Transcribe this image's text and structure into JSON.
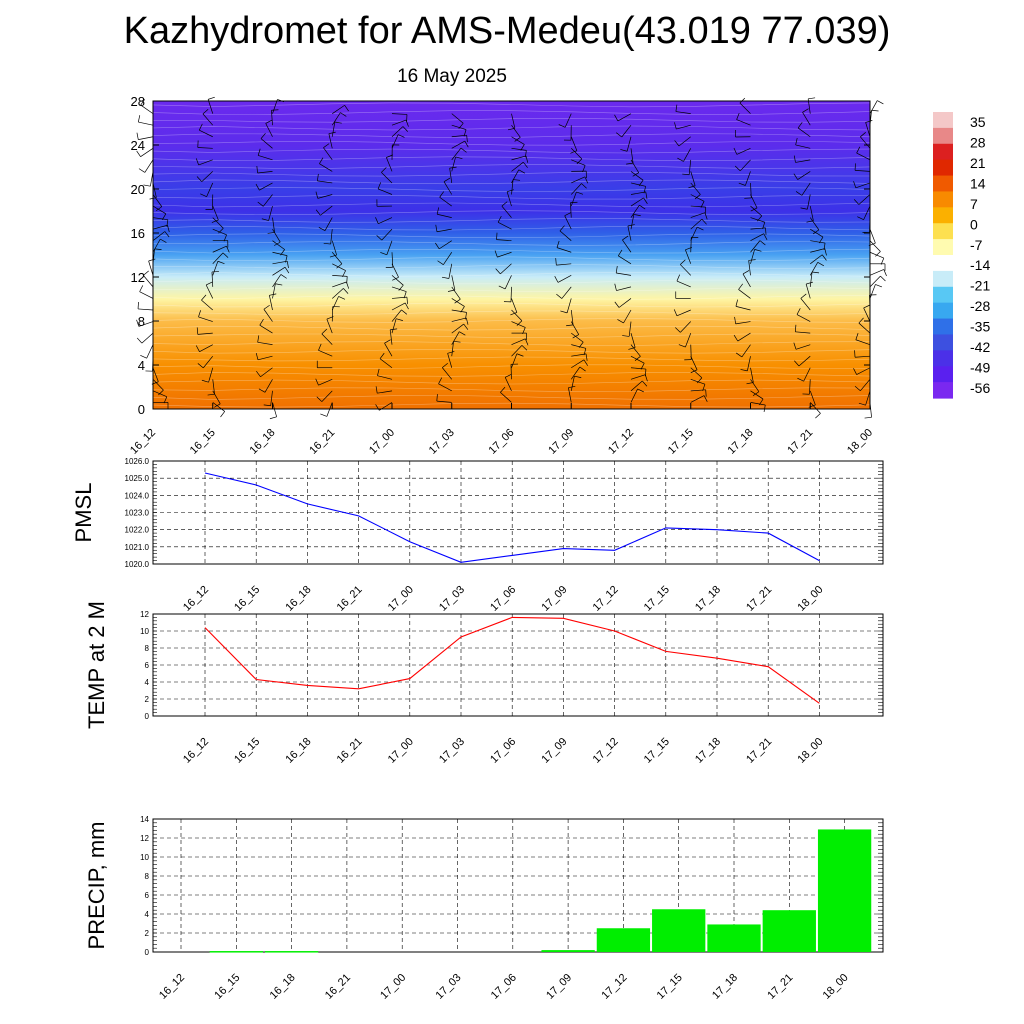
{
  "title": "Kazhydromet for AMS-Medeu(43.019 77.039)",
  "subtitle": "16 May 2025",
  "time_labels": [
    "16_12",
    "16_15",
    "16_18",
    "16_21",
    "17_00",
    "17_03",
    "17_06",
    "17_09",
    "17_12",
    "17_15",
    "17_18",
    "17_21",
    "18_00"
  ],
  "colors": {
    "pmsl_line": "#0000ff",
    "temp_line": "#ff0000",
    "precip_bar": "#00ee00",
    "grid": "#000000"
  },
  "chart_data": [
    {
      "type": "heatmap",
      "name": "upper-air-temperature-section",
      "x_categories": [
        "16_12",
        "16_15",
        "16_18",
        "16_21",
        "17_00",
        "17_03",
        "17_06",
        "17_09",
        "17_12",
        "17_15",
        "17_18",
        "17_21",
        "18_00"
      ],
      "y_ticks": [
        0,
        4,
        8,
        12,
        16,
        20,
        24,
        28
      ],
      "ylim": [
        0,
        28
      ],
      "colorbar_labels": [
        "35",
        "28",
        "21",
        "14",
        "7",
        "0",
        "-7",
        "-14",
        "-21",
        "-28",
        "-35",
        "-42",
        "-49",
        "-56"
      ],
      "colorbar_colors": [
        "#f4c8c8",
        "#e88888",
        "#dc2020",
        "#e02800",
        "#f05a00",
        "#f88a00",
        "#fbb000",
        "#fde050",
        "#fffbb0",
        "#ffffff",
        "#c8ecf8",
        "#58c8f4",
        "#38a8f0",
        "#2f70e8",
        "#3d50e0",
        "#4b30e8",
        "#5a20ef",
        "#7a28f0"
      ],
      "temperature_profile_at_first_time": [
        {
          "y": 0,
          "t": 18
        },
        {
          "y": 4,
          "t": 12
        },
        {
          "y": 8,
          "t": 3
        },
        {
          "y": 10,
          "t": -10
        },
        {
          "y": 12,
          "t": -22
        },
        {
          "y": 14,
          "t": -35
        },
        {
          "y": 16,
          "t": -45
        },
        {
          "y": 18,
          "t": -52
        },
        {
          "y": 20,
          "t": -50
        },
        {
          "y": 24,
          "t": -56
        },
        {
          "y": 28,
          "t": -58
        }
      ],
      "wind_barbs": "shown"
    },
    {
      "type": "line",
      "name": "PMSL",
      "ylabel": "PMSL",
      "categories": [
        "16_12",
        "16_15",
        "16_18",
        "16_21",
        "17_00",
        "17_03",
        "17_06",
        "17_09",
        "17_12",
        "17_15",
        "17_18",
        "17_21",
        "18_00"
      ],
      "values": [
        1025.3,
        1024.6,
        1023.5,
        1022.8,
        1021.3,
        1020.1,
        1020.5,
        1020.9,
        1020.8,
        1022.1,
        1022.0,
        1021.8,
        1020.2
      ],
      "ylim": [
        1020.0,
        1026.0
      ],
      "yticks": [
        "1020.0",
        "1021.0",
        "1022.0",
        "1023.0",
        "1024.0",
        "1025.0",
        "1026.0"
      ],
      "grid": true
    },
    {
      "type": "line",
      "name": "TEMP at 2 M",
      "ylabel": "TEMP at 2 M",
      "categories": [
        "16_12",
        "16_15",
        "16_18",
        "16_21",
        "17_00",
        "17_03",
        "17_06",
        "17_09",
        "17_12",
        "17_15",
        "17_18",
        "17_21",
        "18_00"
      ],
      "values": [
        10.4,
        4.3,
        3.6,
        3.2,
        4.4,
        9.3,
        11.6,
        11.5,
        10.0,
        7.6,
        6.8,
        5.8,
        1.5
      ],
      "ylim": [
        0,
        12
      ],
      "yticks": [
        "0",
        "2",
        "4",
        "6",
        "8",
        "10",
        "12"
      ],
      "grid": true
    },
    {
      "type": "bar",
      "name": "PRECIP, mm",
      "ylabel": "PRECIP, mm",
      "categories": [
        "16_12",
        "16_15",
        "16_18",
        "16_21",
        "17_00",
        "17_03",
        "17_06",
        "17_09",
        "17_12",
        "17_15",
        "17_18",
        "17_21",
        "18_00"
      ],
      "values": [
        0,
        0.1,
        0.1,
        0,
        0,
        0,
        0,
        0.2,
        2.5,
        4.5,
        2.9,
        4.4,
        12.9
      ],
      "ylim": [
        0,
        14
      ],
      "yticks": [
        "0",
        "2",
        "4",
        "6",
        "8",
        "10",
        "12",
        "14"
      ],
      "grid": true
    }
  ]
}
